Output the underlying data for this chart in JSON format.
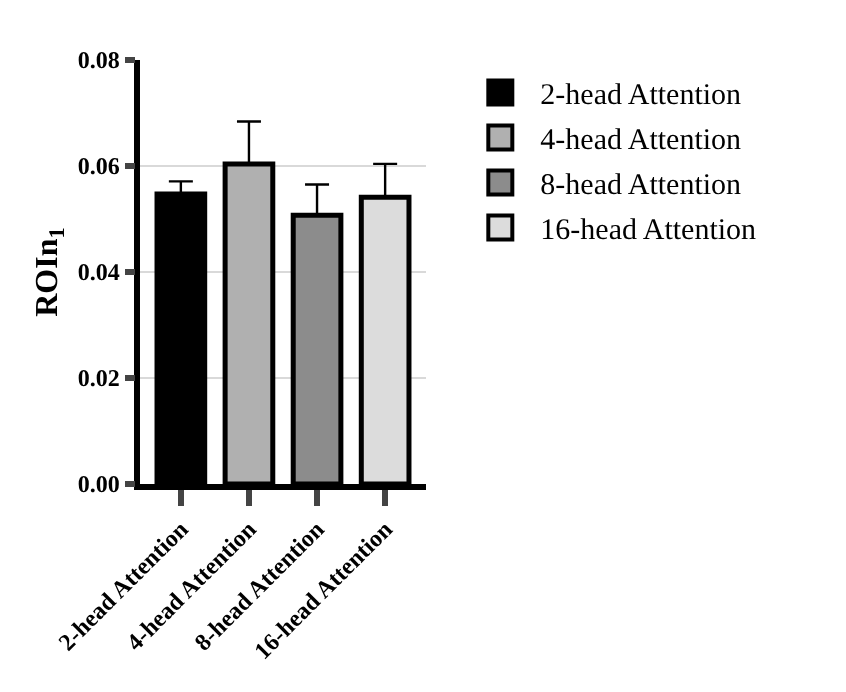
{
  "chart_data": {
    "type": "bar",
    "ylabel": "ROIn$_{1}$",
    "categories": [
      "2-head Attention",
      "4-head Attention",
      "8-head Attention",
      "16-head Attention"
    ],
    "series": [
      {
        "name": "2-head Attention",
        "color": "#000000",
        "values": [
          0.0547,
          null,
          null,
          null
        ],
        "errors": [
          [
            0.0547,
            0.0571
          ],
          null,
          null,
          null
        ]
      },
      {
        "name": "4-head Attention",
        "color": "#b0b0b0",
        "values": [
          null,
          0.0604,
          null,
          null
        ],
        "errors": [
          null,
          [
            0.0604,
            0.0684
          ],
          null,
          null
        ]
      },
      {
        "name": "8-head Attention",
        "color": "#8c8c8c",
        "values": [
          null,
          null,
          0.0507,
          null
        ],
        "errors": [
          null,
          null,
          [
            0.0507,
            0.0565
          ],
          null
        ]
      },
      {
        "name": "16-head Attention",
        "color": "#dcdcdc",
        "values": [
          null,
          null,
          null,
          0.0541
        ],
        "errors": [
          null,
          null,
          null,
          [
            0.0541,
            0.0604
          ]
        ]
      }
    ],
    "ylim": [
      0,
      0.08
    ],
    "yticks": [
      {
        "value": 0,
        "label": "0.00"
      },
      {
        "value": 0.02,
        "label": "0.02"
      },
      {
        "value": 0.04,
        "label": "0.04"
      },
      {
        "value": 0.06,
        "label": "0.06"
      },
      {
        "value": 0.08,
        "label": "0.08"
      }
    ],
    "grid": "y",
    "legend": "right"
  }
}
